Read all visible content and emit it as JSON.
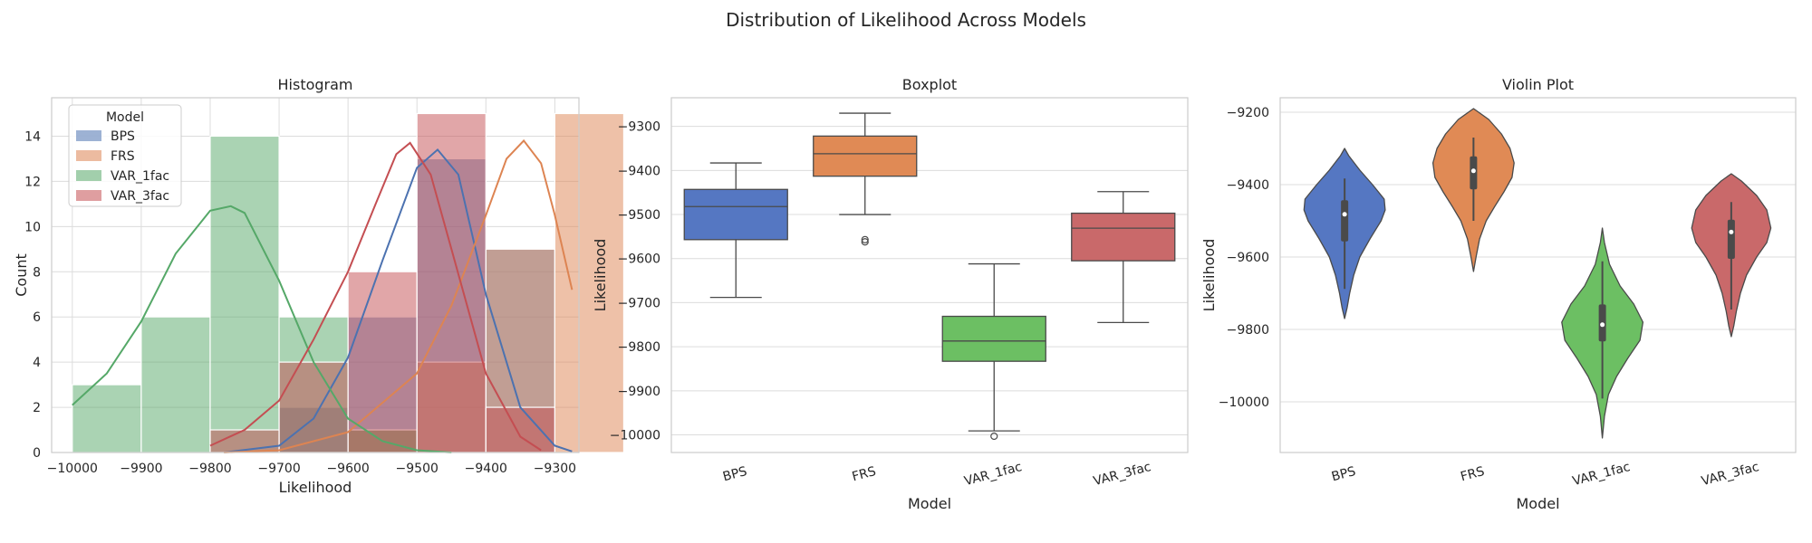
{
  "figure": {
    "suptitle": "Distribution of Likelihood Across Models"
  },
  "colors": {
    "BPS": "#4c72b0",
    "FRS": "#dd8452",
    "VAR_1fac": "#55a868",
    "VAR_3fac": "#c44e52",
    "violin": {
      "BPS": "#5577c2",
      "FRS": "#e08a55",
      "VAR_1fac": "#6cbf63",
      "VAR_3fac": "#c9696a"
    }
  },
  "chart_data": [
    {
      "type": "histogram",
      "title": "Histogram",
      "xlabel": "Likelihood",
      "ylabel": "Count",
      "xlim": [
        -10030,
        -9265
      ],
      "ylim": [
        0,
        15.7
      ],
      "xticks": [
        -10000,
        -9900,
        -9800,
        -9700,
        -9600,
        -9500,
        -9400,
        -9300
      ],
      "yticks": [
        0,
        2,
        4,
        6,
        8,
        10,
        12,
        14
      ],
      "grid": true,
      "legend": {
        "title": "Model",
        "placement": "top-left",
        "entries": [
          "BPS",
          "FRS",
          "VAR_1fac",
          "VAR_3fac"
        ]
      },
      "bin_edges": [
        -10000,
        -9900,
        -9800,
        -9700,
        -9600,
        -9500,
        -9400,
        -9300
      ],
      "bin_width": 100,
      "series": [
        {
          "name": "BPS",
          "counts": [
            0,
            0,
            0,
            2,
            6,
            13,
            9,
            0
          ]
        },
        {
          "name": "FRS",
          "counts": [
            0,
            0,
            0,
            0,
            1,
            4,
            9,
            15
          ]
        },
        {
          "name": "VAR_1fac",
          "counts": [
            3,
            6,
            14,
            6,
            1,
            0,
            0,
            0
          ]
        },
        {
          "name": "VAR_3fac",
          "counts": [
            0,
            0,
            1,
            4,
            8,
            15,
            2,
            0
          ]
        }
      ],
      "kde": [
        {
          "name": "BPS",
          "x": [
            -9780,
            -9700,
            -9650,
            -9600,
            -9550,
            -9500,
            -9470,
            -9440,
            -9400,
            -9350,
            -9300,
            -9275
          ],
          "y": [
            0,
            0.3,
            1.5,
            4.2,
            8.5,
            12.6,
            13.4,
            12.3,
            7.0,
            2.0,
            0.3,
            0.05
          ]
        },
        {
          "name": "FRS",
          "x": [
            -9780,
            -9700,
            -9600,
            -9500,
            -9450,
            -9400,
            -9370,
            -9345,
            -9320,
            -9300,
            -9275
          ],
          "y": [
            0,
            0.1,
            0.9,
            3.5,
            6.5,
            10.5,
            13.0,
            13.8,
            12.8,
            10.5,
            7.2
          ]
        },
        {
          "name": "VAR_1fac",
          "x": [
            -10000,
            -9950,
            -9900,
            -9850,
            -9800,
            -9770,
            -9750,
            -9700,
            -9650,
            -9600,
            -9550,
            -9500,
            -9450
          ],
          "y": [
            2.1,
            3.5,
            5.8,
            8.8,
            10.7,
            10.9,
            10.6,
            7.6,
            4.0,
            1.5,
            0.5,
            0.1,
            0
          ]
        },
        {
          "name": "VAR_3fac",
          "x": [
            -9800,
            -9750,
            -9700,
            -9650,
            -9600,
            -9560,
            -9530,
            -9510,
            -9480,
            -9450,
            -9400,
            -9350,
            -9320
          ],
          "y": [
            0.3,
            1.0,
            2.3,
            5.0,
            8.0,
            11.0,
            13.2,
            13.7,
            12.3,
            9.0,
            3.5,
            0.7,
            0.1
          ]
        }
      ]
    },
    {
      "type": "boxplot",
      "title": "Boxplot",
      "xlabel": "Model",
      "ylabel": "Likelihood",
      "categories": [
        "BPS",
        "FRS",
        "VAR_1fac",
        "VAR_3fac"
      ],
      "ylim": [
        -10040,
        -9235
      ],
      "yticks": [
        -10000,
        -9900,
        -9800,
        -9700,
        -9600,
        -9500,
        -9400,
        -9300
      ],
      "grid": true,
      "series": [
        {
          "name": "BPS",
          "whisker_low": -9688,
          "q1": -9557,
          "median": -9482,
          "q3": -9443,
          "whisker_high": -9383,
          "outliers": []
        },
        {
          "name": "FRS",
          "whisker_low": -9500,
          "q1": -9413,
          "median": -9362,
          "q3": -9322,
          "whisker_high": -9270,
          "outliers": [
            -9557,
            -9562
          ]
        },
        {
          "name": "VAR_1fac",
          "whisker_low": -9991,
          "q1": -9833,
          "median": -9787,
          "q3": -9731,
          "whisker_high": -9612,
          "outliers": [
            -10003
          ]
        },
        {
          "name": "VAR_3fac",
          "whisker_low": -9745,
          "q1": -9605,
          "median": -9531,
          "q3": -9497,
          "whisker_high": -9448,
          "outliers": []
        }
      ]
    },
    {
      "type": "violin",
      "title": "Violin Plot",
      "xlabel": "Model",
      "ylabel": "Likelihood",
      "categories": [
        "BPS",
        "FRS",
        "VAR_1fac",
        "VAR_3fac"
      ],
      "ylim": [
        -10140,
        -9160
      ],
      "yticks": [
        -10000,
        -9800,
        -9600,
        -9400,
        -9200
      ],
      "grid": true,
      "series": [
        {
          "name": "BPS",
          "q1": -9557,
          "median": -9482,
          "q3": -9443,
          "whisker_low": -9688,
          "whisker_high": -9383,
          "profile": [
            [
              -9300,
              0.0
            ],
            [
              -9320,
              0.08
            ],
            [
              -9360,
              0.3
            ],
            [
              -9400,
              0.55
            ],
            [
              -9440,
              0.78
            ],
            [
              -9470,
              0.8
            ],
            [
              -9500,
              0.72
            ],
            [
              -9550,
              0.5
            ],
            [
              -9600,
              0.3
            ],
            [
              -9650,
              0.18
            ],
            [
              -9700,
              0.1
            ],
            [
              -9740,
              0.05
            ],
            [
              -9770,
              0.0
            ]
          ]
        },
        {
          "name": "FRS",
          "q1": -9413,
          "median": -9362,
          "q3": -9322,
          "whisker_low": -9500,
          "whisker_high": -9270,
          "profile": [
            [
              -9190,
              0.0
            ],
            [
              -9220,
              0.3
            ],
            [
              -9260,
              0.55
            ],
            [
              -9300,
              0.72
            ],
            [
              -9340,
              0.8
            ],
            [
              -9380,
              0.76
            ],
            [
              -9420,
              0.6
            ],
            [
              -9460,
              0.42
            ],
            [
              -9500,
              0.25
            ],
            [
              -9550,
              0.12
            ],
            [
              -9600,
              0.05
            ],
            [
              -9640,
              0.0
            ]
          ]
        },
        {
          "name": "VAR_1fac",
          "q1": -9833,
          "median": -9787,
          "q3": -9731,
          "whisker_low": -9991,
          "whisker_high": -9612,
          "profile": [
            [
              -9520,
              0.0
            ],
            [
              -9560,
              0.04
            ],
            [
              -9620,
              0.14
            ],
            [
              -9680,
              0.35
            ],
            [
              -9730,
              0.62
            ],
            [
              -9780,
              0.8
            ],
            [
              -9830,
              0.74
            ],
            [
              -9880,
              0.5
            ],
            [
              -9930,
              0.28
            ],
            [
              -9980,
              0.12
            ],
            [
              -10040,
              0.04
            ],
            [
              -10100,
              0.0
            ]
          ]
        },
        {
          "name": "VAR_3fac",
          "q1": -9605,
          "median": -9531,
          "q3": -9497,
          "whisker_low": -9745,
          "whisker_high": -9448,
          "profile": [
            [
              -9370,
              0.0
            ],
            [
              -9390,
              0.2
            ],
            [
              -9430,
              0.5
            ],
            [
              -9470,
              0.7
            ],
            [
              -9520,
              0.78
            ],
            [
              -9560,
              0.7
            ],
            [
              -9600,
              0.5
            ],
            [
              -9650,
              0.3
            ],
            [
              -9700,
              0.18
            ],
            [
              -9750,
              0.1
            ],
            [
              -9790,
              0.05
            ],
            [
              -9820,
              0.0
            ]
          ]
        }
      ]
    }
  ]
}
